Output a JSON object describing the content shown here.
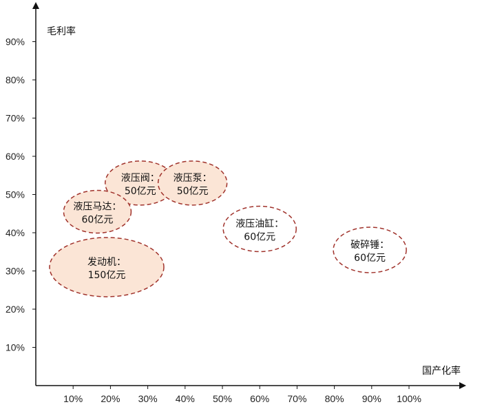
{
  "chart_data": {
    "type": "scatter",
    "title": "",
    "xlabel": "国产化率",
    "ylabel": "毛利率",
    "x_ticks": [
      "10%",
      "20%",
      "30%",
      "40%",
      "50%",
      "60%",
      "70%",
      "80%",
      "90%",
      "100%"
    ],
    "y_ticks": [
      "10%",
      "20%",
      "30%",
      "40%",
      "50%",
      "60%",
      "70%",
      "80%",
      "90%"
    ],
    "xlim": [
      0,
      110
    ],
    "ylim": [
      0,
      100
    ],
    "grid": false,
    "legend": "none",
    "colors": {
      "filled_bubble": "#fbe5d6",
      "bubble_border": "#a0322b",
      "axis": "#111111"
    },
    "points": [
      {
        "name": "液压阀",
        "value": "50亿元",
        "x": 28,
        "y": 53,
        "filled": true
      },
      {
        "name": "液压泵",
        "value": "50亿元",
        "x": 42,
        "y": 53,
        "filled": true
      },
      {
        "name": "液压马达",
        "value": "60亿元",
        "x": 16.5,
        "y": 45.5,
        "filled": true
      },
      {
        "name": "发动机",
        "value": "150亿元",
        "x": 19,
        "y": 31,
        "filled": true
      },
      {
        "name": "液压油缸",
        "value": "60亿元",
        "x": 60,
        "y": 41,
        "filled": false
      },
      {
        "name": "破碎锤",
        "value": "60亿元",
        "x": 89.5,
        "y": 35.5,
        "filled": false
      }
    ]
  }
}
